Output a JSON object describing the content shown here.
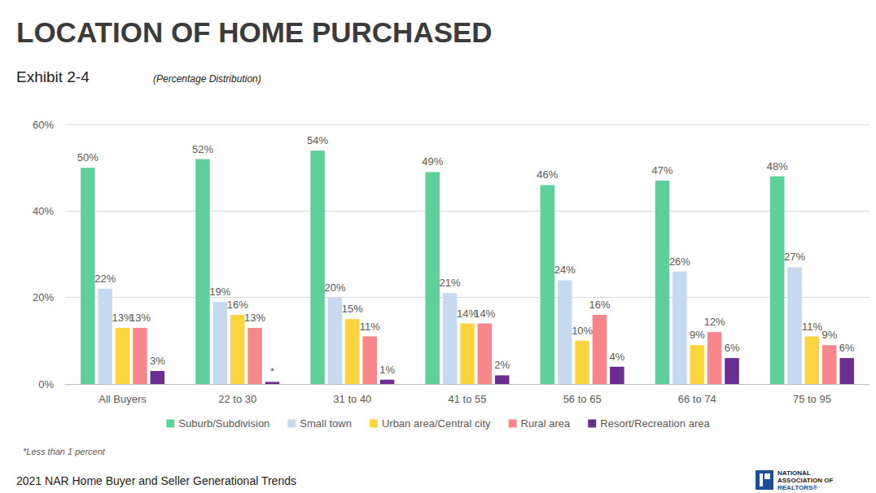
{
  "chart_data": {
    "type": "bar",
    "title": "LOCATION OF HOME PURCHASED",
    "subtitle": "Exhibit 2-4",
    "annotations": [
      "(Percentage Distribution)",
      "*Less than 1 percent",
      "2021 NAR Home Buyer and Seller Generational Trends",
      "NATIONAL",
      "ASSOCIATION OF",
      "REALTORS®"
    ],
    "categories": [
      "All Buyers",
      "22 to 30",
      "31 to 40",
      "41 to 55",
      "56 to 65",
      "66 to 74",
      "75 to 95"
    ],
    "series": [
      {
        "name": "Suburb/Subdivision",
        "color": "#5fd09a",
        "values": [
          50,
          52,
          54,
          49,
          46,
          47,
          48
        ],
        "value_labels": [
          "50%",
          "52%",
          "54%",
          "49%",
          "46%",
          "47%",
          "48%"
        ]
      },
      {
        "name": "Small town",
        "color": "#c6d9ee",
        "values": [
          22,
          19,
          20,
          21,
          24,
          26,
          27
        ],
        "value_labels": [
          "22%",
          "19%",
          "20%",
          "21%",
          "24%",
          "26%",
          "27%"
        ]
      },
      {
        "name": "Urban area/Central city",
        "color": "#fcd43e",
        "values": [
          13,
          16,
          15,
          14,
          10,
          9,
          11
        ],
        "value_labels": [
          "13%",
          "16%",
          "15%",
          "14%",
          "10%",
          "9%",
          "11%"
        ]
      },
      {
        "name": "Rural area",
        "color": "#f7878b",
        "values": [
          13,
          13,
          11,
          14,
          16,
          12,
          9
        ],
        "value_labels": [
          "13%",
          "13%",
          "11%",
          "14%",
          "16%",
          "12%",
          "9%"
        ]
      },
      {
        "name": "Resort/Recreation area",
        "color": "#6c2d92",
        "values": [
          3,
          0.5,
          1,
          2,
          4,
          6,
          6
        ],
        "value_labels": [
          "3%",
          "*",
          "1%",
          "2%",
          "4%",
          "6%",
          "6%"
        ]
      }
    ],
    "ylim": [
      0,
      60
    ],
    "yticks": [
      {
        "value": 0,
        "label": "0%"
      },
      {
        "value": 20,
        "label": "20%"
      },
      {
        "value": 40,
        "label": "40%"
      },
      {
        "value": 60,
        "label": "60%"
      }
    ],
    "grid": true,
    "legend": "bottom",
    "data_labels": true
  }
}
